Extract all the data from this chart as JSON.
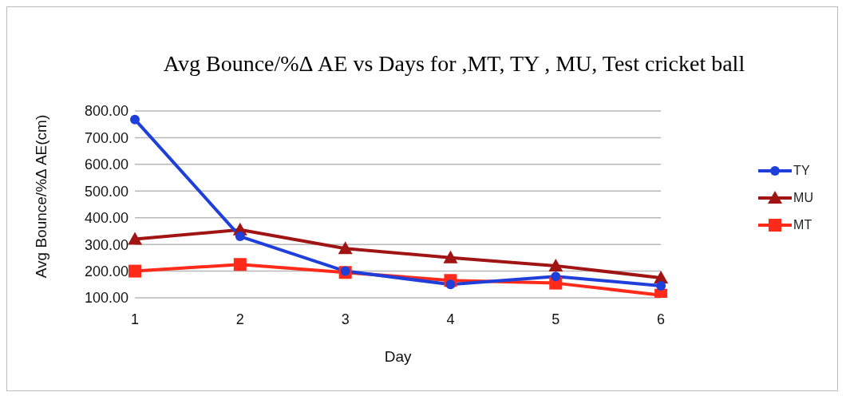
{
  "chart_data": {
    "type": "line",
    "title": "Avg Bounce/%Δ AE vs Days for ,MT, TY , MU, Test cricket ball",
    "xlabel": "Day",
    "ylabel": "Avg Bounce/%Δ AE(cm)",
    "categories": [
      "1",
      "2",
      "3",
      "4",
      "5",
      "6"
    ],
    "series": [
      {
        "name": "TY",
        "color": "#1f3fdb",
        "marker": "circle",
        "values": [
          768,
          330,
          200,
          150,
          180,
          145
        ]
      },
      {
        "name": "MU",
        "color": "#a01414",
        "marker": "triangle",
        "values": [
          320,
          355,
          285,
          250,
          220,
          175
        ]
      },
      {
        "name": "MT",
        "color": "#ff2a1a",
        "marker": "square",
        "values": [
          200,
          225,
          195,
          165,
          155,
          110
        ]
      }
    ],
    "ylim": [
      100,
      800
    ],
    "yticks": [
      {
        "value": 100,
        "label": "100.00"
      },
      {
        "value": 200,
        "label": "200.00"
      },
      {
        "value": 300,
        "label": "300.00"
      },
      {
        "value": 400,
        "label": "400.00"
      },
      {
        "value": 500,
        "label": "500.00"
      },
      {
        "value": 600,
        "label": "600.00"
      },
      {
        "value": 700,
        "label": "700.00"
      },
      {
        "value": 800,
        "label": "800.00"
      }
    ],
    "grid": "y",
    "legend": "right"
  }
}
